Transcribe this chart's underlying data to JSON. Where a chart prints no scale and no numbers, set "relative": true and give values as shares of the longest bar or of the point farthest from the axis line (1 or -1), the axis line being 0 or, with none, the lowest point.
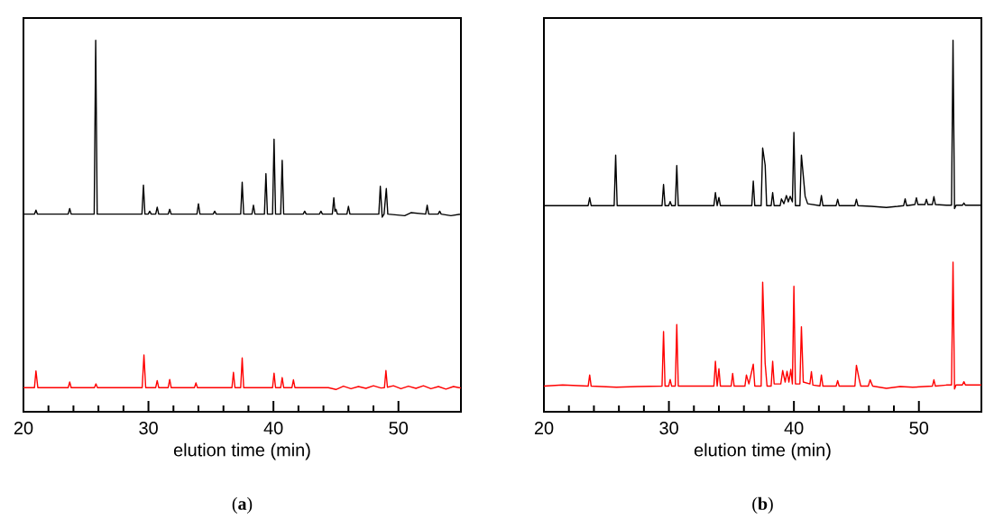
{
  "chart_data": [
    {
      "type": "line",
      "title": "(**a**)",
      "xlabel": "elution time (min)",
      "xlim": [
        20,
        55
      ],
      "xticks": [
        20,
        30,
        40,
        50
      ],
      "relative": true,
      "tick_labels": "x",
      "series": [
        {
          "color": "#000000",
          "x": [
            20,
            20.88,
            21.0,
            21.12,
            23.58,
            23.7,
            23.82,
            25.66,
            25.78,
            25.9,
            29.48,
            29.6,
            29.72,
            29.98,
            30.1,
            30.22,
            30.58,
            30.7,
            30.82,
            31.58,
            31.7,
            31.82,
            33.88,
            34.0,
            34.12,
            35.18,
            35.3,
            35.42,
            37.38,
            37.5,
            37.62,
            38.28,
            38.4,
            38.52,
            39.28,
            39.4,
            39.52,
            39.93,
            40.05,
            40.17,
            40.58,
            40.7,
            40.82,
            42.38,
            42.5,
            42.62,
            43.68,
            43.8,
            43.92,
            44.71,
            44.83,
            44.92,
            45.0,
            45.12,
            45.88,
            46.0,
            46.12,
            48.43,
            48.55,
            48.7,
            48.85,
            49.03,
            49.15,
            50.5,
            51.0,
            52.18,
            52.3,
            52.42,
            53.18,
            53.3,
            53.42,
            54.2,
            55
          ],
          "values": [
            0.532,
            0.532,
            0.543,
            0.532,
            0.532,
            0.547,
            0.532,
            0.532,
            1.0,
            0.532,
            0.532,
            0.61,
            0.532,
            0.532,
            0.54,
            0.532,
            0.532,
            0.551,
            0.532,
            0.532,
            0.545,
            0.532,
            0.532,
            0.56,
            0.532,
            0.532,
            0.54,
            0.532,
            0.532,
            0.618,
            0.532,
            0.532,
            0.556,
            0.532,
            0.532,
            0.641,
            0.532,
            0.532,
            0.734,
            0.532,
            0.532,
            0.677,
            0.532,
            0.532,
            0.54,
            0.532,
            0.532,
            0.54,
            0.532,
            0.532,
            0.576,
            0.54,
            0.545,
            0.532,
            0.532,
            0.553,
            0.532,
            0.532,
            0.607,
            0.524,
            0.532,
            0.601,
            0.532,
            0.528,
            0.536,
            0.532,
            0.556,
            0.532,
            0.532,
            0.54,
            0.532,
            0.528,
            0.532
          ]
        },
        {
          "color": "#ff0000",
          "x": [
            20,
            20.88,
            21.0,
            21.15,
            23.58,
            23.7,
            23.82,
            25.68,
            25.8,
            25.92,
            29.5,
            29.64,
            29.78,
            30.58,
            30.7,
            30.82,
            31.58,
            31.7,
            31.82,
            33.68,
            33.8,
            33.92,
            36.68,
            36.8,
            36.92,
            37.38,
            37.5,
            37.62,
            39.93,
            40.05,
            40.17,
            40.58,
            40.7,
            40.82,
            41.48,
            41.6,
            41.72,
            44.4,
            45.0,
            45.6,
            46.2,
            46.8,
            47.4,
            48.0,
            48.6,
            48.88,
            49.0,
            49.12,
            49.6,
            50.2,
            50.8,
            51.4,
            52.0,
            52.6,
            53.2,
            53.8,
            54.4,
            55
          ],
          "values": [
            0.065,
            0.065,
            0.11,
            0.065,
            0.065,
            0.08,
            0.065,
            0.065,
            0.075,
            0.065,
            0.065,
            0.153,
            0.065,
            0.065,
            0.084,
            0.065,
            0.065,
            0.087,
            0.065,
            0.065,
            0.078,
            0.065,
            0.065,
            0.106,
            0.065,
            0.065,
            0.145,
            0.065,
            0.065,
            0.104,
            0.065,
            0.065,
            0.092,
            0.065,
            0.065,
            0.086,
            0.065,
            0.065,
            0.06,
            0.069,
            0.062,
            0.068,
            0.063,
            0.07,
            0.064,
            0.065,
            0.111,
            0.066,
            0.07,
            0.062,
            0.069,
            0.063,
            0.07,
            0.062,
            0.068,
            0.061,
            0.068,
            0.064
          ]
        }
      ]
    },
    {
      "type": "line",
      "title": "(**b**)",
      "xlabel": "elution time (min)",
      "xlim": [
        20,
        55
      ],
      "xticks": [
        20,
        30,
        40,
        50
      ],
      "relative": true,
      "tick_labels": "x",
      "series": [
        {
          "color": "#000000",
          "x": [
            20,
            23.54,
            23.66,
            23.78,
            25.62,
            25.74,
            25.86,
            29.45,
            29.57,
            29.69,
            29.98,
            30.1,
            30.22,
            30.51,
            30.63,
            30.75,
            33.6,
            33.72,
            33.86,
            34.0,
            34.12,
            36.63,
            36.75,
            36.87,
            37.38,
            37.5,
            37.7,
            37.82,
            38.18,
            38.3,
            38.42,
            38.9,
            39.0,
            39.2,
            39.4,
            39.55,
            39.7,
            39.88,
            40.0,
            40.12,
            40.48,
            40.6,
            40.9,
            41.1,
            42.08,
            42.2,
            42.32,
            43.38,
            43.5,
            43.62,
            44.88,
            45.0,
            45.12,
            46.2,
            47.4,
            48.3,
            48.78,
            48.9,
            49.02,
            49.68,
            49.8,
            49.92,
            50.48,
            50.6,
            50.72,
            51.08,
            51.2,
            51.32,
            52.2,
            52.61,
            52.73,
            52.85,
            52.97,
            53.48,
            53.6,
            53.72,
            54.4,
            55
          ],
          "values": [
            0.555,
            0.555,
            0.576,
            0.555,
            0.555,
            0.691,
            0.555,
            0.555,
            0.612,
            0.555,
            0.555,
            0.566,
            0.555,
            0.555,
            0.663,
            0.555,
            0.555,
            0.59,
            0.555,
            0.577,
            0.555,
            0.555,
            0.621,
            0.555,
            0.555,
            0.71,
            0.664,
            0.555,
            0.555,
            0.59,
            0.555,
            0.555,
            0.573,
            0.56,
            0.582,
            0.565,
            0.58,
            0.565,
            0.752,
            0.555,
            0.555,
            0.691,
            0.58,
            0.56,
            0.555,
            0.582,
            0.555,
            0.555,
            0.572,
            0.555,
            0.555,
            0.572,
            0.555,
            0.553,
            0.55,
            0.553,
            0.555,
            0.573,
            0.555,
            0.558,
            0.576,
            0.558,
            0.558,
            0.572,
            0.558,
            0.558,
            0.579,
            0.558,
            0.556,
            0.556,
            1.0,
            0.547,
            0.556,
            0.556,
            0.562,
            0.556,
            0.556,
            0.556
          ]
        },
        {
          "color": "#ff0000",
          "x": [
            20,
            21.5,
            23.54,
            23.66,
            23.78,
            25.8,
            27.5,
            29.45,
            29.57,
            29.69,
            29.98,
            30.1,
            30.22,
            30.51,
            30.63,
            30.75,
            33.6,
            33.72,
            33.86,
            34.0,
            34.12,
            34.98,
            35.1,
            35.22,
            36.08,
            36.2,
            36.4,
            36.75,
            36.87,
            37.38,
            37.5,
            37.7,
            37.85,
            38.18,
            38.3,
            38.42,
            38.95,
            39.1,
            39.3,
            39.45,
            39.6,
            39.75,
            39.88,
            40.0,
            40.12,
            40.48,
            40.6,
            40.75,
            41.28,
            41.4,
            41.52,
            42.08,
            42.2,
            42.32,
            43.38,
            43.5,
            43.62,
            44.88,
            45.0,
            45.2,
            45.35,
            45.95,
            46.1,
            46.3,
            47.4,
            48.5,
            49.5,
            51.08,
            51.2,
            51.32,
            52.2,
            52.61,
            52.73,
            52.85,
            52.97,
            53.48,
            53.6,
            53.72,
            54.4,
            55
          ],
          "values": [
            0.069,
            0.072,
            0.069,
            0.099,
            0.069,
            0.066,
            0.068,
            0.069,
            0.216,
            0.069,
            0.069,
            0.087,
            0.069,
            0.069,
            0.235,
            0.069,
            0.069,
            0.136,
            0.069,
            0.116,
            0.069,
            0.069,
            0.103,
            0.069,
            0.069,
            0.099,
            0.075,
            0.128,
            0.069,
            0.069,
            0.349,
            0.13,
            0.069,
            0.069,
            0.136,
            0.075,
            0.075,
            0.111,
            0.08,
            0.109,
            0.08,
            0.114,
            0.075,
            0.338,
            0.075,
            0.075,
            0.229,
            0.08,
            0.075,
            0.108,
            0.072,
            0.069,
            0.099,
            0.069,
            0.069,
            0.084,
            0.069,
            0.069,
            0.125,
            0.091,
            0.069,
            0.069,
            0.086,
            0.069,
            0.063,
            0.068,
            0.066,
            0.069,
            0.086,
            0.069,
            0.072,
            0.072,
            0.403,
            0.061,
            0.072,
            0.072,
            0.081,
            0.072,
            0.072,
            0.072
          ]
        }
      ]
    }
  ]
}
